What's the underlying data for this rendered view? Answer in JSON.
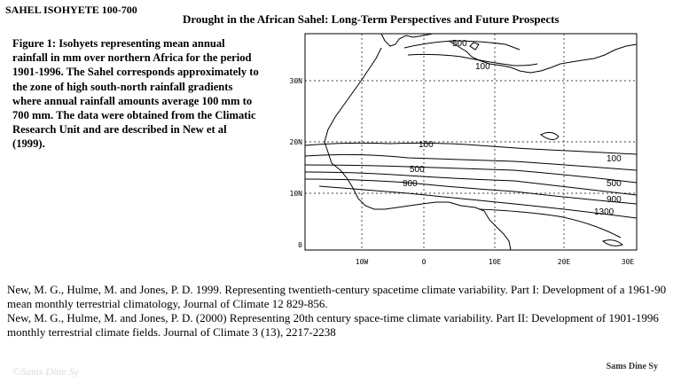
{
  "slide_title": "SAHEL ISOHYETE 100-700",
  "header": "Drought in the African Sahel: Long-Term Perspectives and Future Prospects",
  "caption": "Figure 1: Isohyets representing mean annual rainfall in mm over northern Africa for the period 1901-1996. The Sahel corresponds approximately to the zone of high south-north rainfall gradients where annual rainfall amounts average 100 mm to 700 mm. The data were obtained from the Climatic Research Unit and are described in New et al (1999).",
  "map": {
    "lat_labels": [
      "30N",
      "20N",
      "10N",
      "0"
    ],
    "lon_labels": [
      "10W",
      "0",
      "10E",
      "20E",
      "30E"
    ],
    "contour_labels": [
      "500",
      "100",
      "100",
      "100",
      "500",
      "500",
      "900",
      "900",
      "1300"
    ]
  },
  "references": [
    "New, M. G., Hulme, M. and Jones, P. D. 1999. Representing twentieth-century spacetime climate variability. Part I: Development of a 1961-90 mean monthly terrestrial climatology, Journal of Climate 12 829-856.",
    "New, M. G., Hulme, M. and Jones, P. D. (2000) Representing 20th century space-time climate variability. Part II: Development of 1901-1996 monthly terrestrial climate fields. Journal of Climate 3 (13), 2217-2238"
  ],
  "watermark": "©Sams Dine Sy",
  "signature": "Sams Dine Sy"
}
